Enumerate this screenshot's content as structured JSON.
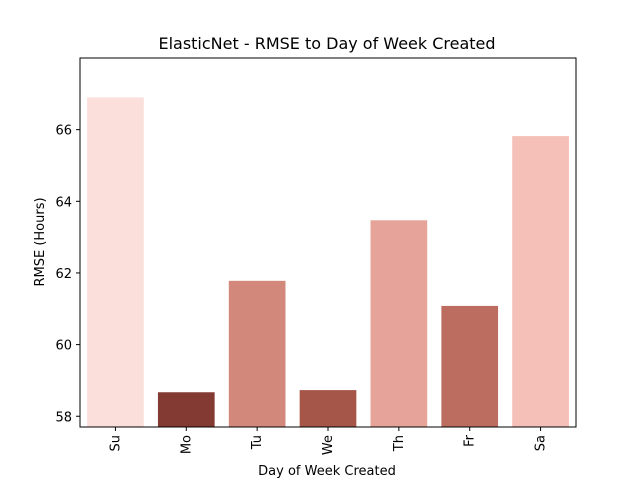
{
  "chart_data": {
    "type": "bar",
    "title": "ElasticNet - RMSE to Day of Week Created",
    "xlabel": "Day of Week Created",
    "ylabel": "RMSE (Hours)",
    "categories": [
      "Su",
      "Mo",
      "Tu",
      "We",
      "Th",
      "Fr",
      "Sa"
    ],
    "values": [
      66.9,
      58.67,
      61.78,
      58.73,
      63.47,
      61.08,
      65.82
    ],
    "colors": [
      "#fbdfdb",
      "#833a33",
      "#d3887c",
      "#a55649",
      "#e6a399",
      "#bc6d60",
      "#f4c0b7"
    ],
    "ylim": [
      57.7,
      68.0
    ],
    "yticks": [
      58,
      60,
      62,
      64,
      66
    ],
    "grid": false,
    "legend": "none"
  }
}
